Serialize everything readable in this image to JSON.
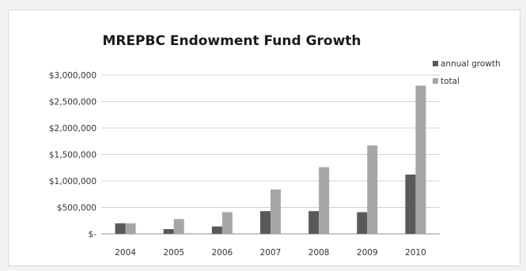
{
  "chart_data": {
    "type": "bar",
    "title": "MREPBC Endowment Fund Growth",
    "xlabel": "",
    "ylabel": "",
    "categories": [
      "2004",
      "2005",
      "2006",
      "2007",
      "2008",
      "2009",
      "2010"
    ],
    "series": [
      {
        "name": "annual growth",
        "color": "#595959",
        "values": [
          200000,
          90000,
          140000,
          430000,
          430000,
          410000,
          1120000
        ]
      },
      {
        "name": "total",
        "color": "#a6a6a6",
        "values": [
          200000,
          280000,
          410000,
          840000,
          1260000,
          1670000,
          2800000
        ]
      }
    ],
    "ylim": [
      0,
      3000000
    ],
    "yticks": [
      0,
      500000,
      1000000,
      1500000,
      2000000,
      2500000,
      3000000
    ],
    "ytick_labels": [
      "$-",
      "$500,000",
      "$1,000,000",
      "$1,500,000",
      "$2,000,000",
      "$2,500,000",
      "$3,000,000"
    ],
    "grid": true,
    "legend_position": "top-right"
  }
}
